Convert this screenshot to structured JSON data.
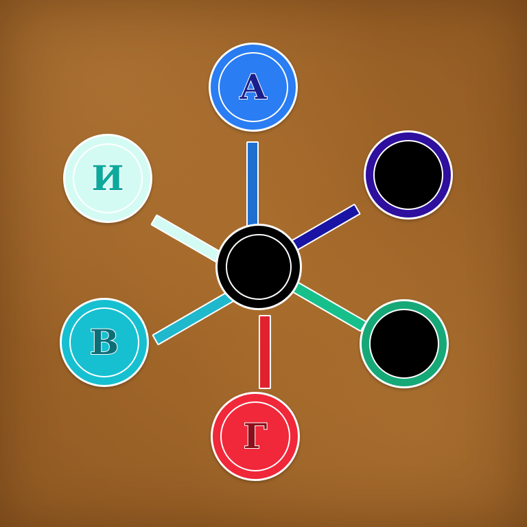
{
  "game": {
    "hub": {
      "state": "empty"
    },
    "nodes": [
      {
        "id": "top",
        "letter": "А",
        "state": "filled",
        "fill": "#2a7df2",
        "letter_color": "#1a1f8c",
        "spoke_color": "#1f6fd1"
      },
      {
        "id": "upper-right",
        "letter": "",
        "state": "empty",
        "fill": "#000000",
        "ring_color": "#2e0f9e",
        "spoke_color": "#1a14a5"
      },
      {
        "id": "lower-right",
        "letter": "",
        "state": "empty",
        "fill": "#000000",
        "ring_color": "#17a878",
        "spoke_color": "#17c08a"
      },
      {
        "id": "bottom",
        "letter": "Г",
        "state": "filled",
        "fill": "#f0283a",
        "letter_color": "#8c0f1a",
        "spoke_color": "#e0222f"
      },
      {
        "id": "lower-left",
        "letter": "В",
        "state": "filled",
        "fill": "#16c0d0",
        "letter_color": "#0d6e78",
        "spoke_color": "#1fb8cc"
      },
      {
        "id": "upper-left",
        "letter": "И",
        "state": "filled",
        "fill": "#d4fbf3",
        "letter_color": "#0ea99c",
        "spoke_color": "#d4fbf3"
      }
    ]
  }
}
